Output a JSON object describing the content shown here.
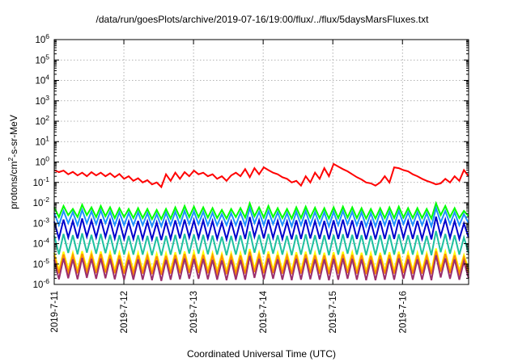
{
  "chart_data": {
    "type": "line",
    "title": "/data/run/goesPlots/archive/2019-07-16/19:00/flux/../flux/5daysMarsFluxes.txt",
    "xlabel": "Coordinated Universal Time (UTC)",
    "ylabel": {
      "prefix": "protons/cm",
      "sup": "2",
      "suffix": "-s-sr-MeV"
    },
    "yscale": "log",
    "ylim_exponents": [
      -6,
      6
    ],
    "y_tick_labels": [
      {
        "base": "10",
        "exp": "6"
      },
      {
        "base": "10",
        "exp": "5"
      },
      {
        "base": "10",
        "exp": "4"
      },
      {
        "base": "10",
        "exp": "3"
      },
      {
        "base": "10",
        "exp": "2"
      },
      {
        "base": "10",
        "exp": "1"
      },
      {
        "base": "10",
        "exp": "0"
      },
      {
        "base": "10",
        "exp": "-1"
      },
      {
        "base": "10",
        "exp": "-2"
      },
      {
        "base": "10",
        "exp": "-3"
      },
      {
        "base": "10",
        "exp": "-4"
      },
      {
        "base": "10",
        "exp": "-5"
      },
      {
        "base": "10",
        "exp": "-6"
      }
    ],
    "x_tick_labels": [
      "2019-7-11",
      "2019-7-12",
      "2019-7-13",
      "2019-7-14",
      "2019-7-15",
      "2019-7-16"
    ],
    "xlim_days": [
      0,
      5.95
    ],
    "grid": true,
    "series": [
      {
        "color": "#ff0000",
        "values": [
          0.4,
          0.32,
          0.38,
          0.25,
          0.33,
          0.22,
          0.3,
          0.2,
          0.32,
          0.22,
          0.3,
          0.2,
          0.28,
          0.18,
          0.26,
          0.15,
          0.2,
          0.12,
          0.16,
          0.1,
          0.13,
          0.08,
          0.1,
          0.06,
          0.25,
          0.12,
          0.3,
          0.15,
          0.32,
          0.2,
          0.38,
          0.25,
          0.3,
          0.2,
          0.25,
          0.15,
          0.2,
          0.12,
          0.22,
          0.3,
          0.2,
          0.45,
          0.18,
          0.5,
          0.25,
          0.55,
          0.4,
          0.3,
          0.25,
          0.18,
          0.15,
          0.1,
          0.12,
          0.07,
          0.2,
          0.1,
          0.3,
          0.15,
          0.5,
          0.2,
          0.8,
          0.6,
          0.45,
          0.35,
          0.25,
          0.18,
          0.14,
          0.1,
          0.09,
          0.07,
          0.1,
          0.2,
          0.1,
          0.55,
          0.5,
          0.4,
          0.35,
          0.25,
          0.2,
          0.15,
          0.12,
          0.1,
          0.08,
          0.09,
          0.15,
          0.1,
          0.2,
          0.12,
          0.4,
          0.2
        ]
      },
      {
        "color": "#00ff00",
        "values": [
          0.006,
          0.002,
          0.007,
          0.0025,
          0.005,
          0.002,
          0.008,
          0.0025,
          0.006,
          0.002,
          0.007,
          0.0022,
          0.006,
          0.0018,
          0.0055,
          0.002,
          0.005,
          0.0018,
          0.0055,
          0.0018,
          0.005,
          0.0016,
          0.0045,
          0.0016,
          0.005,
          0.0017,
          0.006,
          0.0019,
          0.007,
          0.002,
          0.0065,
          0.002,
          0.006,
          0.0019,
          0.0055,
          0.0018,
          0.0045,
          0.0017,
          0.005,
          0.002,
          0.0055,
          0.0019,
          0.0095,
          0.0022,
          0.006,
          0.0019,
          0.007,
          0.002,
          0.0055,
          0.0018,
          0.005,
          0.0017,
          0.006,
          0.0018,
          0.0065,
          0.0019,
          0.0058,
          0.0018,
          0.0055,
          0.0017,
          0.006,
          0.0018,
          0.0065,
          0.0019,
          0.006,
          0.0018,
          0.0055,
          0.0017,
          0.005,
          0.0017,
          0.0055,
          0.0018,
          0.006,
          0.0018,
          0.0065,
          0.0019,
          0.0055,
          0.0018,
          0.0055,
          0.0018,
          0.005,
          0.0017,
          0.0095,
          0.0025,
          0.007,
          0.002,
          0.0055,
          0.0018,
          0.004,
          0.0022
        ]
      },
      {
        "color": "#1e90ff",
        "values": [
          0.0032,
          0.0008,
          0.004,
          0.001,
          0.0035,
          0.0008,
          0.0045,
          0.001,
          0.0038,
          0.0009,
          0.0042,
          0.001,
          0.0036,
          0.0008,
          0.0034,
          0.0008,
          0.0032,
          0.0008,
          0.0034,
          0.0008,
          0.0031,
          0.0007,
          0.0028,
          0.0007,
          0.0032,
          0.0008,
          0.0036,
          0.0008,
          0.004,
          0.0009,
          0.0038,
          0.0009,
          0.0036,
          0.0008,
          0.0033,
          0.0008,
          0.0028,
          0.0008,
          0.0031,
          0.0008,
          0.0033,
          0.0008,
          0.0055,
          0.001,
          0.0036,
          0.0008,
          0.004,
          0.0009,
          0.0034,
          0.0008,
          0.0031,
          0.0007,
          0.0036,
          0.0008,
          0.0039,
          0.0008,
          0.0035,
          0.0008,
          0.0034,
          0.0007,
          0.0036,
          0.0008,
          0.0039,
          0.0009,
          0.0036,
          0.0008,
          0.0034,
          0.0007,
          0.0031,
          0.0007,
          0.0034,
          0.0008,
          0.0036,
          0.0008,
          0.0039,
          0.0009,
          0.0034,
          0.0008,
          0.0034,
          0.0008,
          0.0031,
          0.0007,
          0.0055,
          0.0011,
          0.004,
          0.0009,
          0.0034,
          0.0008,
          0.0028,
          0.001
        ]
      },
      {
        "color": "#0000cd",
        "values": [
          0.0012,
          0.00018,
          0.0015,
          0.0002,
          0.0013,
          0.00018,
          0.0017,
          0.00022,
          0.0014,
          0.0002,
          0.0016,
          0.00021,
          0.0014,
          0.00018,
          0.0013,
          0.00017,
          0.0012,
          0.00017,
          0.0013,
          0.00017,
          0.0012,
          0.00016,
          0.0011,
          0.00015,
          0.0012,
          0.00017,
          0.0014,
          0.00018,
          0.0015,
          0.0002,
          0.0014,
          0.00019,
          0.0014,
          0.00018,
          0.0013,
          0.00017,
          0.0011,
          0.00016,
          0.0012,
          0.00017,
          0.0013,
          0.00017,
          0.002,
          0.00022,
          0.0014,
          0.00018,
          0.0015,
          0.00019,
          0.0013,
          0.00017,
          0.0012,
          0.00016,
          0.0014,
          0.00017,
          0.0015,
          0.00018,
          0.0013,
          0.00017,
          0.0013,
          0.00016,
          0.0014,
          0.00017,
          0.0015,
          0.00019,
          0.0014,
          0.00017,
          0.0013,
          0.00016,
          0.0012,
          0.00016,
          0.0013,
          0.00017,
          0.0014,
          0.00017,
          0.0015,
          0.00019,
          0.0013,
          0.00017,
          0.0013,
          0.00017,
          0.0012,
          0.00016,
          0.0021,
          0.00024,
          0.0015,
          0.00019,
          0.0013,
          0.00017,
          0.001,
          0.0002
        ]
      },
      {
        "color": "#20c0a0",
        "values": [
          0.00025,
          3e-05,
          0.0003,
          3.5e-05,
          0.00026,
          3e-05,
          0.00032,
          3.6e-05,
          0.00027,
          3.2e-05,
          0.0003,
          3.4e-05,
          0.00027,
          3e-05,
          0.00026,
          2.9e-05,
          0.00024,
          2.9e-05,
          0.00026,
          2.9e-05,
          0.00024,
          2.7e-05,
          0.00022,
          2.6e-05,
          0.00024,
          2.9e-05,
          0.00027,
          3e-05,
          0.0003,
          3.3e-05,
          0.00028,
          3.2e-05,
          0.00027,
          3e-05,
          0.00025,
          2.9e-05,
          0.00022,
          2.7e-05,
          0.00024,
          2.9e-05,
          0.00025,
          2.9e-05,
          0.0004,
          3.6e-05,
          0.00027,
          3e-05,
          0.0003,
          3.2e-05,
          0.00026,
          2.9e-05,
          0.00024,
          2.7e-05,
          0.00027,
          2.9e-05,
          0.00029,
          3e-05,
          0.00026,
          2.9e-05,
          0.00026,
          2.7e-05,
          0.00027,
          2.9e-05,
          0.00029,
          3.2e-05,
          0.00027,
          2.9e-05,
          0.00026,
          2.7e-05,
          0.00024,
          2.7e-05,
          0.00026,
          2.9e-05,
          0.00027,
          2.9e-05,
          0.00029,
          3.2e-05,
          0.00026,
          2.9e-05,
          0.00026,
          2.9e-05,
          0.00024,
          2.7e-05,
          0.00042,
          3.8e-05,
          0.0003,
          3.2e-05,
          0.00026,
          2.9e-05,
          0.0002,
          3.4e-05
        ]
      },
      {
        "color": "#ffff00",
        "values": [
          3.5e-05,
          5e-06,
          4e-05,
          5.5e-06,
          3.6e-05,
          5e-06,
          4.3e-05,
          5.8e-06,
          3.8e-05,
          5.2e-06,
          4.1e-05,
          5.5e-06,
          3.8e-05,
          5e-06,
          3.6e-05,
          4.8e-06,
          3.4e-05,
          4.8e-06,
          3.6e-05,
          4.8e-06,
          3.4e-05,
          4.5e-06,
          3.2e-05,
          4.3e-06,
          3.4e-05,
          4.8e-06,
          3.8e-05,
          5e-06,
          4.1e-05,
          5.4e-06,
          3.9e-05,
          5.2e-06,
          3.8e-05,
          5e-06,
          3.5e-05,
          4.8e-06,
          3.2e-05,
          4.5e-06,
          3.4e-05,
          4.8e-06,
          3.5e-05,
          4.8e-06,
          5.5e-05,
          5.8e-06,
          3.8e-05,
          5e-06,
          4.1e-05,
          5.2e-06,
          3.6e-05,
          4.8e-06,
          3.4e-05,
          4.5e-06,
          3.8e-05,
          4.8e-06,
          4e-05,
          5e-06,
          3.6e-05,
          4.8e-06,
          3.6e-05,
          4.5e-06,
          3.8e-05,
          4.8e-06,
          4e-05,
          5.2e-06,
          3.8e-05,
          4.8e-06,
          3.6e-05,
          4.5e-06,
          3.4e-05,
          4.5e-06,
          3.6e-05,
          4.8e-06,
          3.8e-05,
          4.8e-06,
          4e-05,
          5.2e-06,
          3.6e-05,
          4.8e-06,
          3.6e-05,
          4.8e-06,
          3.4e-05,
          4.5e-06,
          5.8e-05,
          6e-06,
          4.1e-05,
          5.2e-06,
          3.6e-05,
          4.8e-06,
          2.8e-05,
          5.5e-06
        ]
      },
      {
        "color": "#ff8c00",
        "values": [
          2.6e-05,
          3.5e-06,
          3e-05,
          3.8e-06,
          2.7e-05,
          3.5e-06,
          3.2e-05,
          4e-06,
          2.8e-05,
          3.6e-06,
          3.1e-05,
          3.8e-06,
          2.8e-05,
          3.5e-06,
          2.7e-05,
          3.4e-06,
          2.5e-05,
          3.4e-06,
          2.7e-05,
          3.4e-06,
          2.5e-05,
          3.2e-06,
          2.4e-05,
          3e-06,
          2.5e-05,
          3.4e-06,
          2.8e-05,
          3.5e-06,
          3.1e-05,
          3.7e-06,
          2.9e-05,
          3.6e-06,
          2.8e-05,
          3.5e-06,
          2.6e-05,
          3.4e-06,
          2.4e-05,
          3.2e-06,
          2.5e-05,
          3.4e-06,
          2.6e-05,
          3.4e-06,
          4e-05,
          4e-06,
          2.8e-05,
          3.5e-06,
          3.1e-05,
          3.6e-06,
          2.7e-05,
          3.4e-06,
          2.5e-05,
          3.2e-06,
          2.8e-05,
          3.4e-06,
          3e-05,
          3.5e-06,
          2.7e-05,
          3.4e-06,
          2.7e-05,
          3.2e-06,
          2.8e-05,
          3.4e-06,
          3e-05,
          3.6e-06,
          2.8e-05,
          3.4e-06,
          2.7e-05,
          3.2e-06,
          2.5e-05,
          3.2e-06,
          2.7e-05,
          3.4e-06,
          2.8e-05,
          3.4e-06,
          3e-05,
          3.6e-06,
          2.7e-05,
          3.4e-06,
          2.7e-05,
          3.4e-06,
          2.5e-05,
          3.2e-06,
          4.3e-05,
          4.2e-06,
          3.1e-05,
          3.6e-06,
          2.7e-05,
          3.4e-06,
          2.1e-05,
          3.8e-06
        ]
      },
      {
        "color": "#9b2f6e",
        "values": [
          1.6e-05,
          1.8e-06,
          1.9e-05,
          2e-06,
          1.7e-05,
          1.8e-06,
          2e-05,
          2.1e-06,
          1.8e-05,
          1.9e-06,
          1.9e-05,
          2e-06,
          1.8e-05,
          1.8e-06,
          1.7e-05,
          1.7e-06,
          1.6e-05,
          1.7e-06,
          1.7e-05,
          1.7e-06,
          1.6e-05,
          1.6e-06,
          1.5e-05,
          1.5e-06,
          1.6e-05,
          1.7e-06,
          1.8e-05,
          1.8e-06,
          1.9e-05,
          1.9e-06,
          1.8e-05,
          1.9e-06,
          1.8e-05,
          1.8e-06,
          1.6e-05,
          1.7e-06,
          1.5e-05,
          1.6e-06,
          1.6e-05,
          1.7e-06,
          1.6e-05,
          1.7e-06,
          2.5e-05,
          2.1e-06,
          1.8e-05,
          1.8e-06,
          1.9e-05,
          1.9e-06,
          1.7e-05,
          1.7e-06,
          1.6e-05,
          1.6e-06,
          1.8e-05,
          1.7e-06,
          1.9e-05,
          1.8e-06,
          1.7e-05,
          1.7e-06,
          1.7e-05,
          1.6e-06,
          1.8e-05,
          1.7e-06,
          1.9e-05,
          1.9e-06,
          1.8e-05,
          1.7e-06,
          1.7e-05,
          1.6e-06,
          1.6e-05,
          1.6e-06,
          1.7e-05,
          1.7e-06,
          1.8e-05,
          1.7e-06,
          1.9e-05,
          1.9e-06,
          1.7e-05,
          1.7e-06,
          1.7e-05,
          1.7e-06,
          1.6e-05,
          1.6e-06,
          2.7e-05,
          2.2e-06,
          1.9e-05,
          1.9e-06,
          1.7e-05,
          1.7e-06,
          1.3e-05,
          2e-06
        ]
      }
    ]
  }
}
